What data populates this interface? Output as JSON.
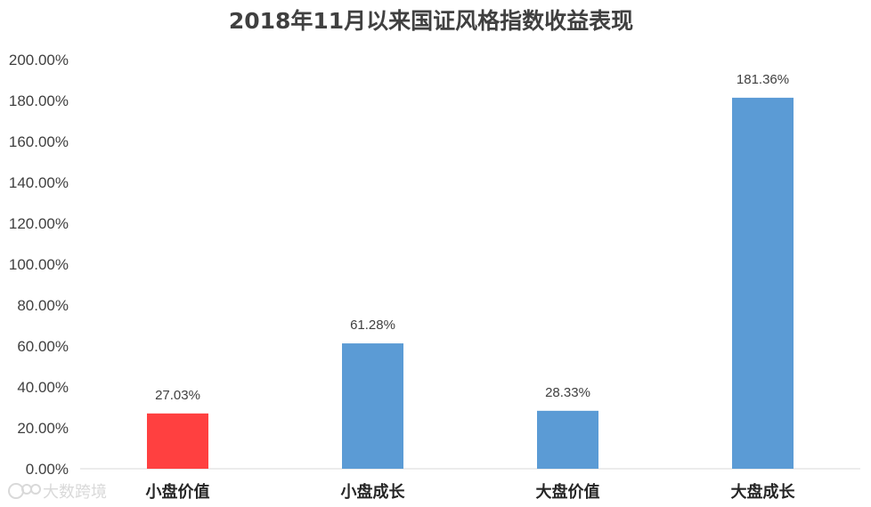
{
  "watermark": "大数跨境",
  "chart_data": {
    "type": "bar",
    "title": "2018年11月以来国证风格指数收益表现",
    "xlabel": "",
    "ylabel": "",
    "categories": [
      "小盘价值",
      "小盘成长",
      "大盘价值",
      "大盘成长"
    ],
    "values": [
      27.03,
      61.28,
      28.33,
      181.36
    ],
    "data_labels": [
      "27.03%",
      "61.28%",
      "28.33%",
      "181.36%"
    ],
    "bar_colors": [
      "#ff4040",
      "#5b9bd5",
      "#5b9bd5",
      "#5b9bd5"
    ],
    "ylim": [
      0,
      200
    ],
    "yticks": [
      "0.00%",
      "20.00%",
      "40.00%",
      "60.00%",
      "80.00%",
      "100.00%",
      "120.00%",
      "140.00%",
      "160.00%",
      "180.00%",
      "200.00%"
    ],
    "grid": false,
    "legend": "none"
  }
}
